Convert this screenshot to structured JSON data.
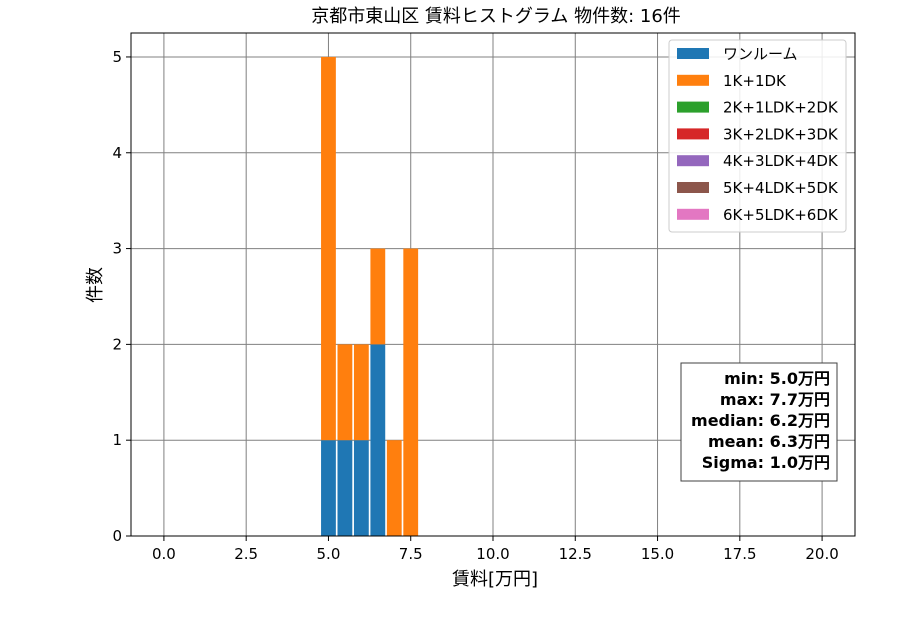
{
  "chart_data": {
    "type": "bar",
    "title": "京都市東山区 賃料ヒストグラム  物件数: 16件",
    "xlabel": "賃料[万円]",
    "ylabel": "件数",
    "xlim": [
      -1.0,
      21.0
    ],
    "ylim": [
      0,
      5.25
    ],
    "xticks": [
      "0.0",
      "2.5",
      "5.0",
      "7.5",
      "10.0",
      "12.5",
      "15.0",
      "17.5",
      "20.0"
    ],
    "yticks": [
      "0",
      "1",
      "2",
      "3",
      "4",
      "5"
    ],
    "grid": true,
    "legend_position": "top-right",
    "bin_width": 0.5,
    "bins": [
      5.0,
      5.5,
      6.0,
      6.5,
      7.0,
      7.5
    ],
    "series": [
      {
        "name": "ワンルーム",
        "color": "#1f77b4",
        "values": [
          1,
          1,
          1,
          2,
          0,
          0
        ]
      },
      {
        "name": "1K+1DK",
        "color": "#ff7f0e",
        "values": [
          4,
          1,
          1,
          1,
          1,
          3
        ]
      },
      {
        "name": "2K+1LDK+2DK",
        "color": "#2ca02c",
        "values": [
          0,
          0,
          0,
          0,
          0,
          0
        ]
      },
      {
        "name": "3K+2LDK+3DK",
        "color": "#d62728",
        "values": [
          0,
          0,
          0,
          0,
          0,
          0
        ]
      },
      {
        "name": "4K+3LDK+4DK",
        "color": "#9467bd",
        "values": [
          0,
          0,
          0,
          0,
          0,
          0
        ]
      },
      {
        "name": "5K+4LDK+5DK",
        "color": "#8c564b",
        "values": [
          0,
          0,
          0,
          0,
          0,
          0
        ]
      },
      {
        "name": "6K+5LDK+6DK",
        "color": "#e377c2",
        "values": [
          0,
          0,
          0,
          0,
          0,
          0
        ]
      }
    ],
    "stats": [
      "min: 5.0万円",
      "max: 7.7万円",
      "median: 6.2万円",
      "mean: 6.3万円",
      "Sigma: 1.0万円"
    ]
  }
}
